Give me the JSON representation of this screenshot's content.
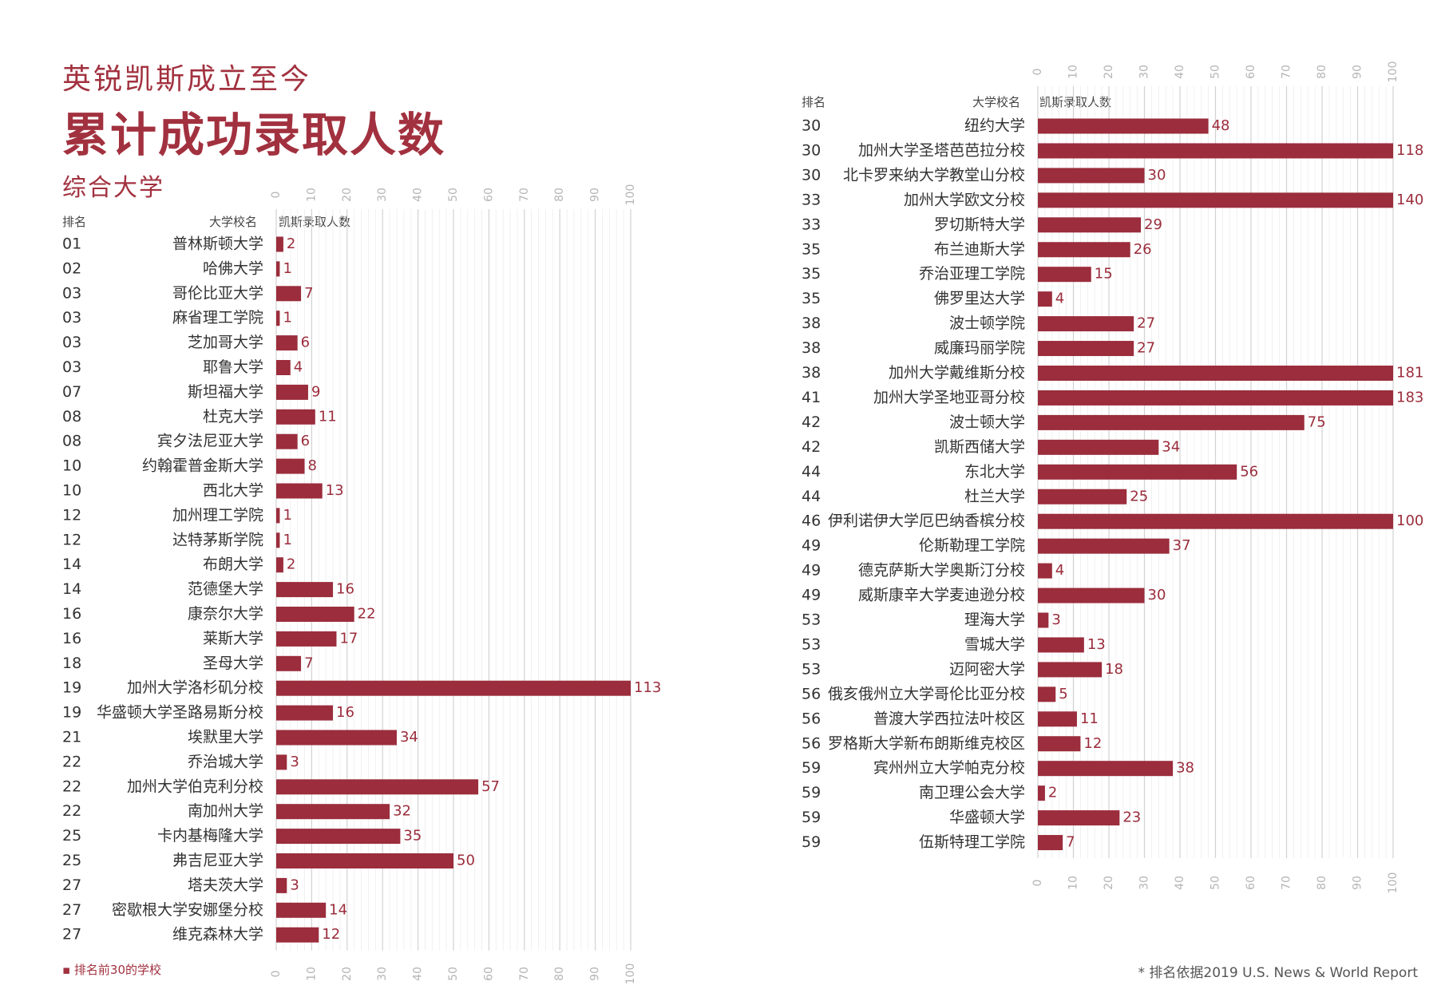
{
  "header": {
    "subtitle": "英锐凯斯成立至今",
    "title": "累计成功录取人数",
    "section": "综合大学"
  },
  "columns": {
    "rank": "排名",
    "school": "大学校名",
    "count": "凯斯录取人数"
  },
  "legend_note": "▪ 排名前30的学校",
  "footnote": "* 排名依据2019 U.S. News & World Report",
  "colors": {
    "bar": "#9b2d3c",
    "text": "#333333",
    "accent": "#a2313f"
  },
  "chart_data": [
    {
      "type": "bar",
      "orientation": "horizontal",
      "title": "",
      "xlim": [
        0,
        100
      ],
      "ticks": [
        0,
        10,
        20,
        30,
        40,
        50,
        60,
        70,
        80,
        90,
        100
      ],
      "grid": true,
      "rows": [
        {
          "rank": "01",
          "school": "普林斯顿大学",
          "value": 2
        },
        {
          "rank": "02",
          "school": "哈佛大学",
          "value": 1
        },
        {
          "rank": "03",
          "school": "哥伦比亚大学",
          "value": 7
        },
        {
          "rank": "03",
          "school": "麻省理工学院",
          "value": 1
        },
        {
          "rank": "03",
          "school": "芝加哥大学",
          "value": 6
        },
        {
          "rank": "03",
          "school": "耶鲁大学",
          "value": 4
        },
        {
          "rank": "07",
          "school": "斯坦福大学",
          "value": 9
        },
        {
          "rank": "08",
          "school": "杜克大学",
          "value": 11
        },
        {
          "rank": "08",
          "school": "宾夕法尼亚大学",
          "value": 6
        },
        {
          "rank": "10",
          "school": "约翰霍普金斯大学",
          "value": 8
        },
        {
          "rank": "10",
          "school": "西北大学",
          "value": 13
        },
        {
          "rank": "12",
          "school": "加州理工学院",
          "value": 1
        },
        {
          "rank": "12",
          "school": "达特茅斯学院",
          "value": 1
        },
        {
          "rank": "14",
          "school": "布朗大学",
          "value": 2
        },
        {
          "rank": "14",
          "school": "范德堡大学",
          "value": 16
        },
        {
          "rank": "16",
          "school": "康奈尔大学",
          "value": 22
        },
        {
          "rank": "16",
          "school": "莱斯大学",
          "value": 17
        },
        {
          "rank": "18",
          "school": "圣母大学",
          "value": 7
        },
        {
          "rank": "19",
          "school": "加州大学洛杉矶分校",
          "value": 113
        },
        {
          "rank": "19",
          "school": "华盛顿大学圣路易斯分校",
          "value": 16
        },
        {
          "rank": "21",
          "school": "埃默里大学",
          "value": 34
        },
        {
          "rank": "22",
          "school": "乔治城大学",
          "value": 3
        },
        {
          "rank": "22",
          "school": "加州大学伯克利分校",
          "value": 57
        },
        {
          "rank": "22",
          "school": "南加州大学",
          "value": 32
        },
        {
          "rank": "25",
          "school": "卡内基梅隆大学",
          "value": 35
        },
        {
          "rank": "25",
          "school": "弗吉尼亚大学",
          "value": 50
        },
        {
          "rank": "27",
          "school": "塔夫茨大学",
          "value": 3
        },
        {
          "rank": "27",
          "school": "密歇根大学安娜堡分校",
          "value": 14
        },
        {
          "rank": "27",
          "school": "维克森林大学",
          "value": 12
        }
      ]
    },
    {
      "type": "bar",
      "orientation": "horizontal",
      "title": "",
      "xlim": [
        0,
        100
      ],
      "ticks": [
        0,
        10,
        20,
        30,
        40,
        50,
        60,
        70,
        80,
        90,
        100
      ],
      "grid": true,
      "rows": [
        {
          "rank": "30",
          "school": "纽约大学",
          "value": 48
        },
        {
          "rank": "30",
          "school": "加州大学圣塔芭芭拉分校",
          "value": 118
        },
        {
          "rank": "30",
          "school": "北卡罗来纳大学教堂山分校",
          "value": 30
        },
        {
          "rank": "33",
          "school": "加州大学欧文分校",
          "value": 140
        },
        {
          "rank": "33",
          "school": "罗切斯特大学",
          "value": 29
        },
        {
          "rank": "35",
          "school": "布兰迪斯大学",
          "value": 26
        },
        {
          "rank": "35",
          "school": "乔治亚理工学院",
          "value": 15
        },
        {
          "rank": "35",
          "school": "佛罗里达大学",
          "value": 4
        },
        {
          "rank": "38",
          "school": "波士顿学院",
          "value": 27
        },
        {
          "rank": "38",
          "school": "威廉玛丽学院",
          "value": 27
        },
        {
          "rank": "38",
          "school": "加州大学戴维斯分校",
          "value": 181
        },
        {
          "rank": "41",
          "school": "加州大学圣地亚哥分校",
          "value": 183
        },
        {
          "rank": "42",
          "school": "波士顿大学",
          "value": 75
        },
        {
          "rank": "42",
          "school": "凯斯西储大学",
          "value": 34
        },
        {
          "rank": "44",
          "school": "东北大学",
          "value": 56
        },
        {
          "rank": "44",
          "school": "杜兰大学",
          "value": 25
        },
        {
          "rank": "46",
          "school": "伊利诺伊大学厄巴纳香槟分校",
          "value": 100
        },
        {
          "rank": "49",
          "school": "伦斯勒理工学院",
          "value": 37
        },
        {
          "rank": "49",
          "school": "德克萨斯大学奥斯汀分校",
          "value": 4
        },
        {
          "rank": "49",
          "school": "威斯康辛大学麦迪逊分校",
          "value": 30
        },
        {
          "rank": "53",
          "school": "理海大学",
          "value": 3
        },
        {
          "rank": "53",
          "school": "雪城大学",
          "value": 13
        },
        {
          "rank": "53",
          "school": "迈阿密大学",
          "value": 18
        },
        {
          "rank": "56",
          "school": "俄亥俄州立大学哥伦比亚分校",
          "value": 5
        },
        {
          "rank": "56",
          "school": "普渡大学西拉法叶校区",
          "value": 11
        },
        {
          "rank": "56",
          "school": "罗格斯大学新布朗斯维克校区",
          "value": 12
        },
        {
          "rank": "59",
          "school": "宾州州立大学帕克分校",
          "value": 38
        },
        {
          "rank": "59",
          "school": "南卫理公会大学",
          "value": 2
        },
        {
          "rank": "59",
          "school": "华盛顿大学",
          "value": 23
        },
        {
          "rank": "59",
          "school": "伍斯特理工学院",
          "value": 7
        }
      ]
    }
  ]
}
